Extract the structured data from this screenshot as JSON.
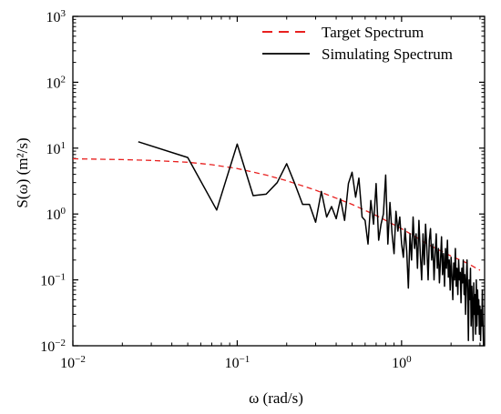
{
  "chart_data": {
    "type": "line",
    "xlabel": "ω (rad/s)",
    "ylabel": "S(ω) (m²/s)",
    "x_scale": "log",
    "y_scale": "log",
    "xlim": [
      0.01,
      3.2
    ],
    "ylim": [
      0.01,
      1000
    ],
    "x_ticks": [
      {
        "value": 0.01,
        "base": "10",
        "exp": "−2"
      },
      {
        "value": 0.1,
        "base": "10",
        "exp": "−1"
      },
      {
        "value": 1,
        "base": "10",
        "exp": "0"
      }
    ],
    "y_ticks": [
      {
        "value": 0.01,
        "base": "10",
        "exp": "−2"
      },
      {
        "value": 0.1,
        "base": "10",
        "exp": "−1"
      },
      {
        "value": 1,
        "base": "10",
        "exp": "0"
      },
      {
        "value": 10,
        "base": "10",
        "exp": "1"
      },
      {
        "value": 100,
        "base": "10",
        "exp": "2"
      },
      {
        "value": 1000,
        "base": "10",
        "exp": "3"
      }
    ],
    "grid": false,
    "legend_position": "top-right",
    "series": [
      {
        "name": "Target Spectrum",
        "style": "dashed",
        "color": "#e8201f",
        "points": [
          [
            0.01,
            6.9
          ],
          [
            0.02,
            6.7
          ],
          [
            0.03,
            6.5
          ],
          [
            0.05,
            6.1
          ],
          [
            0.07,
            5.6
          ],
          [
            0.1,
            4.9
          ],
          [
            0.15,
            3.9
          ],
          [
            0.2,
            3.2
          ],
          [
            0.3,
            2.3
          ],
          [
            0.5,
            1.4
          ],
          [
            0.7,
            0.95
          ],
          [
            1.0,
            0.6
          ],
          [
            1.5,
            0.33
          ],
          [
            2.0,
            0.23
          ],
          [
            2.5,
            0.18
          ],
          [
            3.0,
            0.14
          ]
        ]
      },
      {
        "name": "Simulating Spectrum",
        "style": "solid",
        "color": "#000000",
        "points": [
          [
            0.025,
            12.5
          ],
          [
            0.05,
            7.2
          ],
          [
            0.075,
            1.15
          ],
          [
            0.1,
            11.5
          ],
          [
            0.125,
            1.9
          ],
          [
            0.15,
            2.0
          ],
          [
            0.175,
            3.0
          ],
          [
            0.2,
            5.8
          ],
          [
            0.225,
            2.8
          ],
          [
            0.25,
            1.4
          ],
          [
            0.275,
            1.4
          ],
          [
            0.3,
            0.75
          ],
          [
            0.325,
            2.2
          ],
          [
            0.35,
            0.9
          ],
          [
            0.375,
            1.3
          ],
          [
            0.4,
            0.85
          ],
          [
            0.425,
            1.7
          ],
          [
            0.45,
            0.8
          ],
          [
            0.475,
            2.9
          ],
          [
            0.5,
            4.3
          ],
          [
            0.525,
            1.8
          ],
          [
            0.55,
            3.5
          ],
          [
            0.575,
            0.9
          ],
          [
            0.6,
            0.8
          ],
          [
            0.625,
            0.35
          ],
          [
            0.65,
            1.6
          ],
          [
            0.675,
            0.7
          ],
          [
            0.7,
            2.9
          ],
          [
            0.725,
            0.4
          ],
          [
            0.75,
            0.7
          ],
          [
            0.775,
            1.0
          ],
          [
            0.8,
            3.9
          ],
          [
            0.825,
            0.35
          ],
          [
            0.85,
            1.5
          ],
          [
            0.875,
            0.5
          ],
          [
            0.9,
            0.25
          ],
          [
            0.925,
            1.1
          ],
          [
            0.95,
            0.55
          ],
          [
            0.975,
            0.9
          ],
          [
            1.0,
            0.35
          ],
          [
            1.025,
            0.22
          ],
          [
            1.05,
            0.6
          ],
          [
            1.075,
            0.27
          ],
          [
            1.1,
            0.075
          ],
          [
            1.125,
            0.5
          ],
          [
            1.15,
            0.2
          ],
          [
            1.175,
            0.9
          ],
          [
            1.2,
            0.3
          ],
          [
            1.225,
            0.5
          ],
          [
            1.25,
            0.15
          ],
          [
            1.275,
            0.8
          ],
          [
            1.3,
            0.25
          ],
          [
            1.325,
            0.1
          ],
          [
            1.35,
            0.5
          ],
          [
            1.375,
            0.17
          ],
          [
            1.4,
            0.7
          ],
          [
            1.425,
            0.3
          ],
          [
            1.45,
            0.1
          ],
          [
            1.475,
            0.4
          ],
          [
            1.5,
            0.6
          ],
          [
            1.525,
            0.2
          ],
          [
            1.55,
            0.35
          ],
          [
            1.575,
            0.1
          ],
          [
            1.6,
            0.25
          ],
          [
            1.625,
            0.5
          ],
          [
            1.65,
            0.15
          ],
          [
            1.675,
            0.3
          ],
          [
            1.7,
            0.09
          ],
          [
            1.725,
            0.2
          ],
          [
            1.75,
            0.45
          ],
          [
            1.775,
            0.12
          ],
          [
            1.8,
            0.25
          ],
          [
            1.825,
            0.08
          ],
          [
            1.85,
            0.3
          ],
          [
            1.875,
            0.15
          ],
          [
            1.9,
            0.4
          ],
          [
            1.925,
            0.11
          ],
          [
            1.95,
            0.2
          ],
          [
            1.975,
            0.07
          ],
          [
            2.0,
            0.22
          ],
          [
            2.025,
            0.12
          ],
          [
            2.05,
            0.05
          ],
          [
            2.075,
            0.18
          ],
          [
            2.1,
            0.1
          ],
          [
            2.125,
            0.3
          ],
          [
            2.15,
            0.08
          ],
          [
            2.175,
            0.15
          ],
          [
            2.2,
            0.06
          ],
          [
            2.225,
            0.2
          ],
          [
            2.25,
            0.1
          ],
          [
            2.275,
            0.13
          ],
          [
            2.3,
            0.045
          ],
          [
            2.325,
            0.15
          ],
          [
            2.35,
            0.09
          ],
          [
            2.375,
            0.2
          ],
          [
            2.4,
            0.06
          ],
          [
            2.425,
            0.12
          ],
          [
            2.45,
            0.03
          ],
          [
            2.475,
            0.1
          ],
          [
            2.5,
            0.2
          ],
          [
            2.525,
            0.07
          ],
          [
            2.55,
            0.012
          ],
          [
            2.575,
            0.1
          ],
          [
            2.6,
            0.05
          ],
          [
            2.625,
            0.15
          ],
          [
            2.65,
            0.02
          ],
          [
            2.675,
            0.08
          ],
          [
            2.7,
            0.04
          ],
          [
            2.725,
            0.012
          ],
          [
            2.75,
            0.09
          ],
          [
            2.775,
            0.03
          ],
          [
            2.8,
            0.06
          ],
          [
            2.825,
            0.015
          ],
          [
            2.85,
            0.1
          ],
          [
            2.875,
            0.02
          ],
          [
            2.9,
            0.07
          ],
          [
            2.925,
            0.03
          ],
          [
            2.95,
            0.05
          ],
          [
            2.975,
            0.015
          ],
          [
            3.0,
            0.04
          ],
          [
            3.025,
            0.012
          ],
          [
            3.05,
            0.035
          ],
          [
            3.075,
            0.02
          ],
          [
            3.1,
            0.07
          ],
          [
            3.125,
            0.025
          ],
          [
            3.15,
            0.01
          ]
        ]
      }
    ]
  }
}
